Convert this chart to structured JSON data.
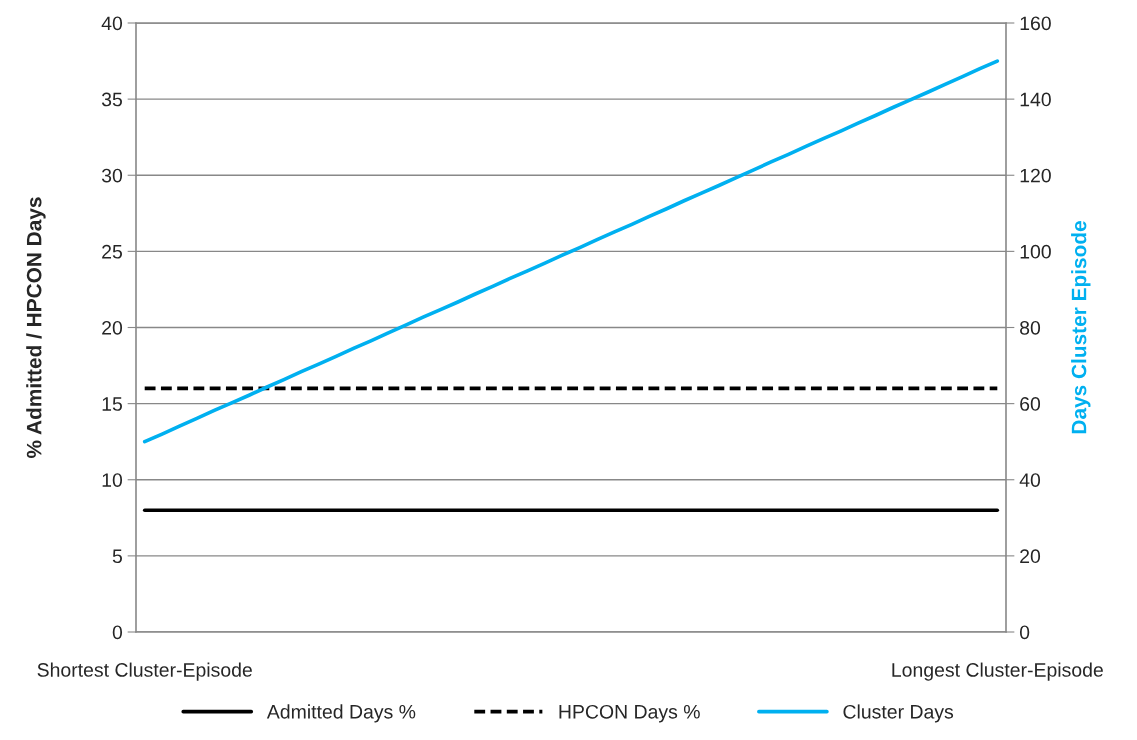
{
  "chart_data": {
    "type": "line",
    "ylabel": "% Admitted / HPCON Days",
    "y2label": "Days Cluster Episode",
    "categories": [
      "Shortest Cluster-Episode",
      null,
      null,
      null,
      null,
      null,
      null,
      null,
      null,
      null,
      null,
      null,
      null,
      null,
      null,
      null,
      null,
      null,
      null,
      null,
      null,
      null,
      null,
      null,
      null,
      null,
      null,
      null,
      null,
      null,
      null,
      null,
      null,
      null,
      null,
      null,
      null,
      null,
      null,
      null,
      null,
      null,
      null,
      null,
      null,
      null,
      null,
      null,
      null,
      "Longest Cluster-Episode"
    ],
    "series": [
      {
        "name": "Admitted Days %",
        "color": "#000000",
        "line_style": "solid",
        "values": [
          8,
          8,
          8,
          8,
          8,
          8,
          8,
          8,
          8,
          8,
          8,
          8,
          8,
          8,
          8,
          8,
          8,
          8,
          8,
          8,
          8,
          8,
          8,
          8,
          8,
          8,
          8,
          8,
          8,
          8,
          8,
          8,
          8,
          8,
          8,
          8,
          8,
          8,
          8,
          8,
          8,
          8,
          8,
          8,
          8,
          8,
          8,
          8,
          8,
          8
        ]
      },
      {
        "name": "HPCON Days %",
        "color": "#000000",
        "line_style": "dashed",
        "values": [
          16,
          16,
          16,
          16,
          16,
          16,
          16,
          16,
          16,
          16,
          16,
          16,
          16,
          16,
          16,
          16,
          16,
          16,
          16,
          16,
          16,
          16,
          16,
          16,
          16,
          16,
          16,
          16,
          16,
          16,
          16,
          16,
          16,
          16,
          16,
          16,
          16,
          16,
          16,
          16,
          16,
          16,
          16,
          16,
          16,
          16,
          16,
          16,
          16,
          16
        ]
      },
      {
        "name": "Cluster Days",
        "color": "#00b0f0",
        "line_style": "solid",
        "axis": "y2",
        "values": [
          50.0,
          52.0,
          54.1,
          56.1,
          58.2,
          60.2,
          62.2,
          64.3,
          66.3,
          68.4,
          70.4,
          72.4,
          74.5,
          76.5,
          78.6,
          80.6,
          82.7,
          84.7,
          86.7,
          88.8,
          90.8,
          92.9,
          94.9,
          96.9,
          99.0,
          101.0,
          103.1,
          105.1,
          107.1,
          109.2,
          111.2,
          113.3,
          115.3,
          117.3,
          119.4,
          121.4,
          123.5,
          125.5,
          127.6,
          129.6,
          131.6,
          133.7,
          135.7,
          137.8,
          139.8,
          141.8,
          143.9,
          145.9,
          148.0,
          150.0
        ]
      }
    ],
    "ylim": [
      0,
      40
    ],
    "yticks": [
      0,
      5,
      10,
      15,
      20,
      25,
      30,
      35,
      40
    ],
    "y2lim": [
      0,
      160
    ],
    "y2ticks": [
      0,
      20,
      40,
      60,
      80,
      100,
      120,
      140,
      160
    ],
    "grid": "y",
    "legend": "bottom",
    "marker": "none"
  }
}
